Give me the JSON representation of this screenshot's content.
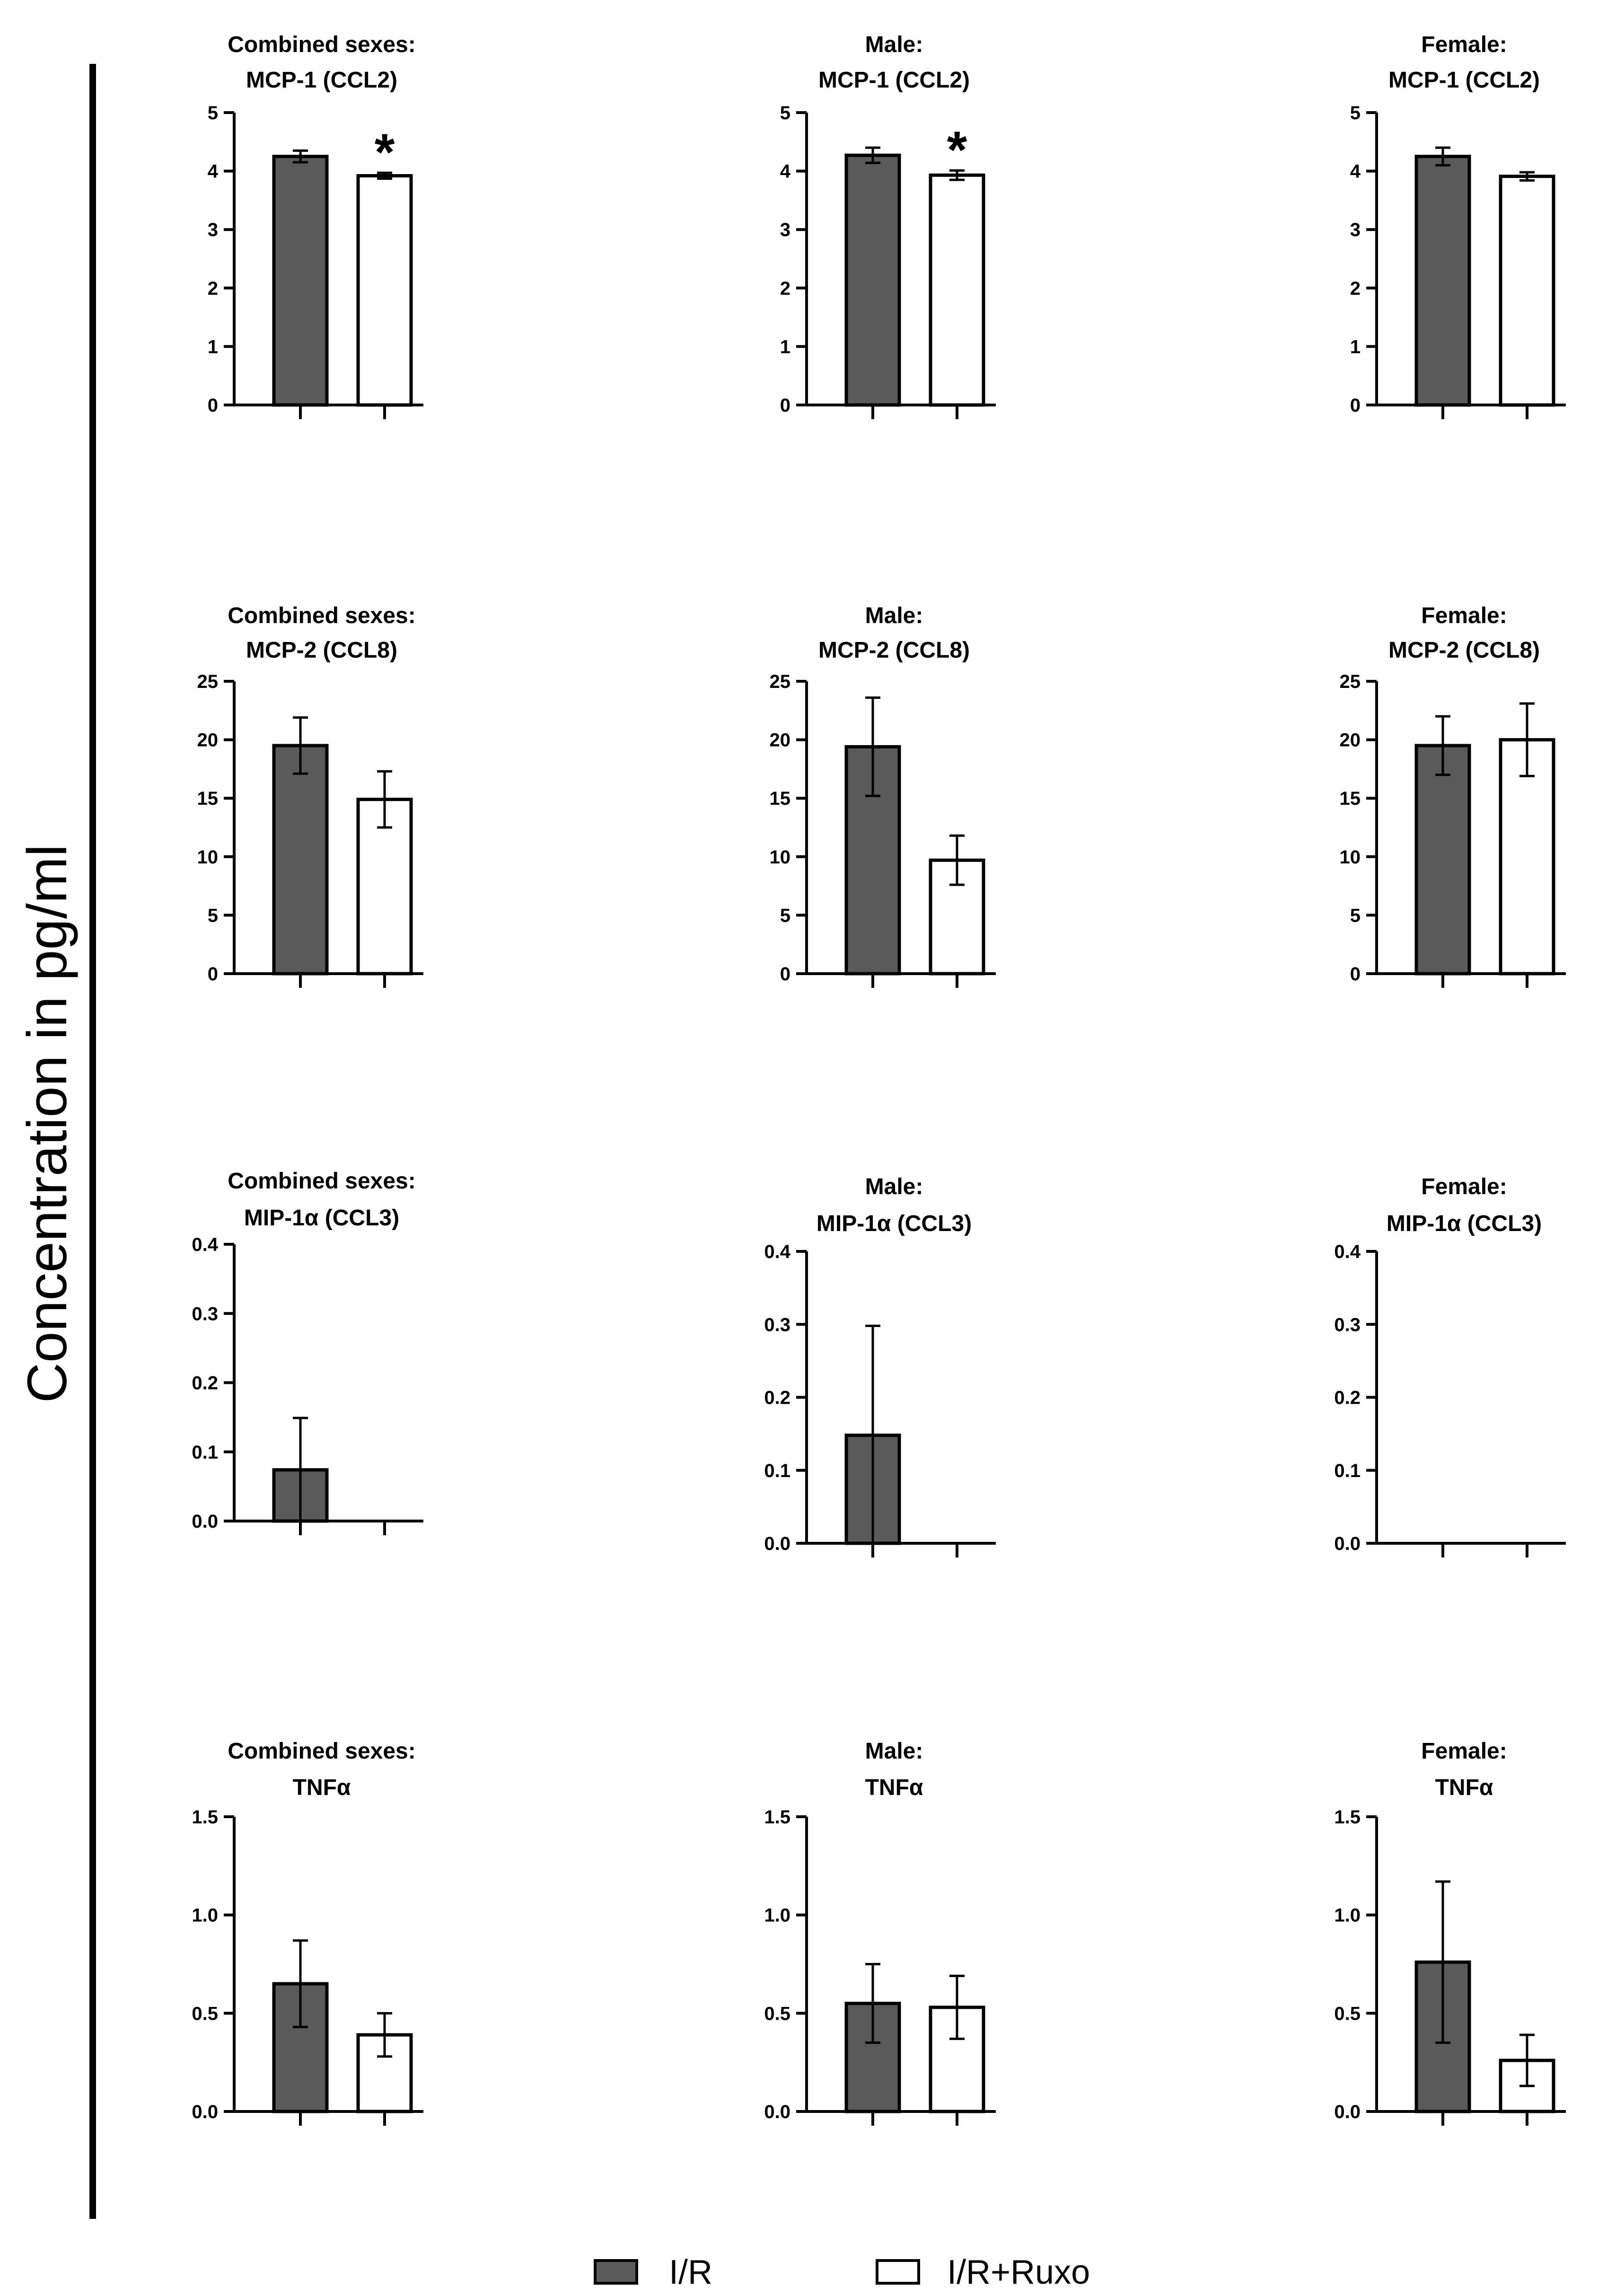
{
  "figure": {
    "y_axis_label": "Concentration in pg/ml",
    "colors": {
      "ir": "#5a5a5a",
      "ruxo": "#ffffff",
      "stroke": "#000000"
    }
  },
  "legend": {
    "items": [
      {
        "label": "I/R",
        "fill": "#5a5a5a"
      },
      {
        "label": "I/R+Ruxo",
        "fill": "#ffffff"
      }
    ]
  },
  "chart_data": [
    {
      "type": "bar",
      "title_line1": "Combined sexes:",
      "title_line2": "MCP-1 (CCL2)",
      "categories": [
        "I/R",
        "I/R+Ruxo"
      ],
      "values": [
        4.25,
        3.92
      ],
      "errors": [
        0.1,
        0.05
      ],
      "significance": [
        "",
        "*"
      ],
      "ylim": [
        0,
        5
      ],
      "yticks": [
        "0",
        "1",
        "2",
        "3",
        "4",
        "5"
      ]
    },
    {
      "type": "bar",
      "title_line1": "Male:",
      "title_line2": "MCP-1 (CCL2)",
      "categories": [
        "I/R",
        "I/R+Ruxo"
      ],
      "values": [
        4.27,
        3.93
      ],
      "errors": [
        0.13,
        0.08
      ],
      "significance": [
        "",
        "*"
      ],
      "ylim": [
        0,
        5
      ],
      "yticks": [
        "0",
        "1",
        "2",
        "3",
        "4",
        "5"
      ]
    },
    {
      "type": "bar",
      "title_line1": "Female:",
      "title_line2": "MCP-1 (CCL2)",
      "categories": [
        "I/R",
        "I/R+Ruxo"
      ],
      "values": [
        4.25,
        3.91
      ],
      "errors": [
        0.15,
        0.07
      ],
      "significance": [
        "",
        ""
      ],
      "ylim": [
        0,
        5
      ],
      "yticks": [
        "0",
        "1",
        "2",
        "3",
        "4",
        "5"
      ]
    },
    {
      "type": "bar",
      "title_line1": "Combined sexes:",
      "title_line2": "MCP-2 (CCL8)",
      "categories": [
        "I/R",
        "I/R+Ruxo"
      ],
      "values": [
        19.5,
        14.9
      ],
      "errors": [
        2.4,
        2.4
      ],
      "significance": [
        "",
        ""
      ],
      "ylim": [
        0,
        25
      ],
      "yticks": [
        "0",
        "5",
        "10",
        "15",
        "20",
        "25"
      ]
    },
    {
      "type": "bar",
      "title_line1": "Male:",
      "title_line2": "MCP-2 (CCL8)",
      "categories": [
        "I/R",
        "I/R+Ruxo"
      ],
      "values": [
        19.4,
        9.7
      ],
      "errors": [
        4.2,
        2.1
      ],
      "significance": [
        "",
        ""
      ],
      "ylim": [
        0,
        25
      ],
      "yticks": [
        "0",
        "5",
        "10",
        "15",
        "20",
        "25"
      ]
    },
    {
      "type": "bar",
      "title_line1": "Female:",
      "title_line2": "MCP-2 (CCL8)",
      "categories": [
        "I/R",
        "I/R+Ruxo"
      ],
      "values": [
        19.5,
        20.0
      ],
      "errors": [
        2.5,
        3.1
      ],
      "significance": [
        "",
        ""
      ],
      "ylim": [
        0,
        25
      ],
      "yticks": [
        "0",
        "5",
        "10",
        "15",
        "20",
        "25"
      ]
    },
    {
      "type": "bar",
      "title_line1": "Combined sexes:",
      "title_line2": "MIP-1α (CCL3)",
      "categories": [
        "I/R",
        "I/R+Ruxo"
      ],
      "values": [
        0.074,
        0
      ],
      "errors": [
        0.075,
        0
      ],
      "significance": [
        "",
        ""
      ],
      "ylim": [
        0,
        0.4
      ],
      "yticks": [
        "0.0",
        "0.1",
        "0.2",
        "0.3",
        "0.4"
      ]
    },
    {
      "type": "bar",
      "title_line1": "Male:",
      "title_line2": "MIP-1α (CCL3)",
      "categories": [
        "I/R",
        "I/R+Ruxo"
      ],
      "values": [
        0.148,
        0
      ],
      "errors": [
        0.15,
        0
      ],
      "significance": [
        "",
        ""
      ],
      "ylim": [
        0,
        0.4
      ],
      "yticks": [
        "0.0",
        "0.1",
        "0.2",
        "0.3",
        "0.4"
      ]
    },
    {
      "type": "bar",
      "title_line1": "Female:",
      "title_line2": "MIP-1α (CCL3)",
      "categories": [
        "I/R",
        "I/R+Ruxo"
      ],
      "values": [
        0,
        0
      ],
      "errors": [
        0,
        0
      ],
      "significance": [
        "",
        ""
      ],
      "ylim": [
        0,
        0.4
      ],
      "yticks": [
        "0.0",
        "0.1",
        "0.2",
        "0.3",
        "0.4"
      ]
    },
    {
      "type": "bar",
      "title_line1": "Combined sexes:",
      "title_line2": "TNFα",
      "categories": [
        "I/R",
        "I/R+Ruxo"
      ],
      "values": [
        0.65,
        0.39
      ],
      "errors": [
        0.22,
        0.11
      ],
      "significance": [
        "",
        ""
      ],
      "ylim": [
        0,
        1.5
      ],
      "yticks": [
        "0.0",
        "0.5",
        "1.0",
        "1.5"
      ]
    },
    {
      "type": "bar",
      "title_line1": "Male:",
      "title_line2": "TNFα",
      "categories": [
        "I/R",
        "I/R+Ruxo"
      ],
      "values": [
        0.55,
        0.53
      ],
      "errors": [
        0.2,
        0.16
      ],
      "significance": [
        "",
        ""
      ],
      "ylim": [
        0,
        1.5
      ],
      "yticks": [
        "0.0",
        "0.5",
        "1.0",
        "1.5"
      ]
    },
    {
      "type": "bar",
      "title_line1": "Female:",
      "title_line2": "TNFα",
      "categories": [
        "I/R",
        "I/R+Ruxo"
      ],
      "values": [
        0.76,
        0.26
      ],
      "errors": [
        0.41,
        0.13
      ],
      "significance": [
        "",
        ""
      ],
      "ylim": [
        0,
        1.5
      ],
      "yticks": [
        "0.0",
        "0.5",
        "1.0",
        "1.5"
      ]
    }
  ]
}
